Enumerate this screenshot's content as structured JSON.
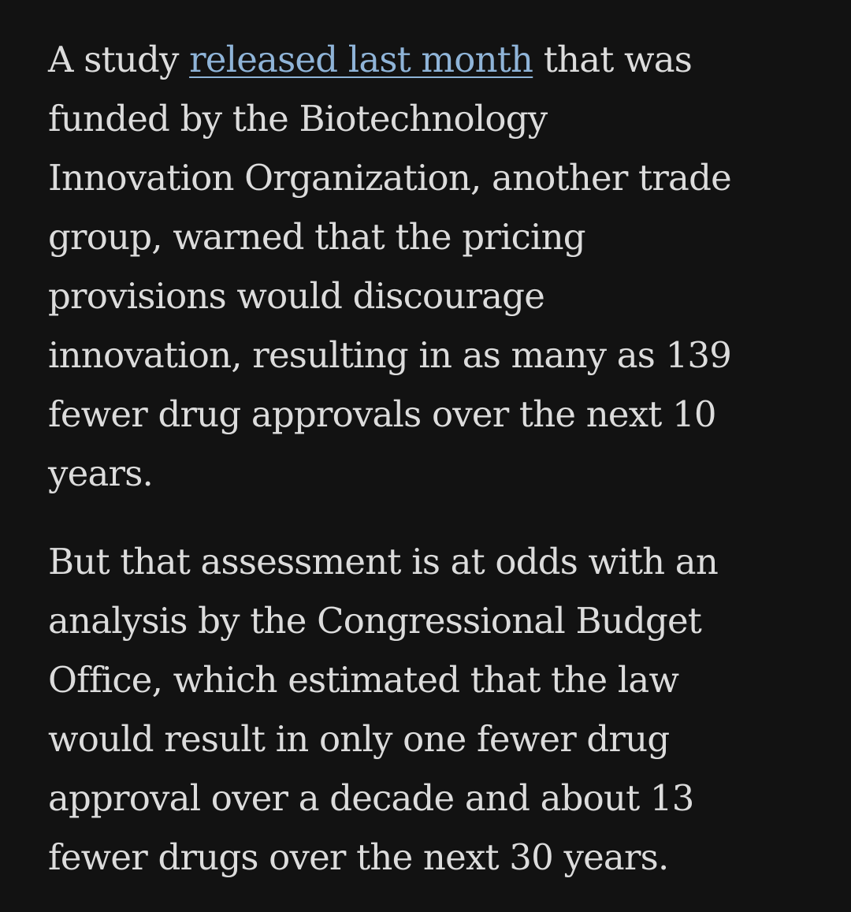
{
  "article": {
    "paragraph1": {
      "lead_text": "A study ",
      "link_text": "released last month",
      "lines": [
        " that was",
        "funded by the Biotechnology",
        "Innovation Organization, another trade",
        "group, warned that the pricing",
        "provisions would discourage",
        "innovation, resulting in as many as 139",
        "fewer drug approvals over the next 10",
        "years."
      ]
    },
    "paragraph2": {
      "lines": [
        "But that assessment is at odds with an",
        "analysis by the Congressional Budget",
        "Office, which estimated that the law",
        "would result in only one fewer drug",
        "approval over a decade and about 13",
        "fewer drugs over the next 30 years."
      ]
    }
  },
  "colors": {
    "background": "#121212",
    "text": "#dcdcdc",
    "link": "#8fb4d8"
  }
}
